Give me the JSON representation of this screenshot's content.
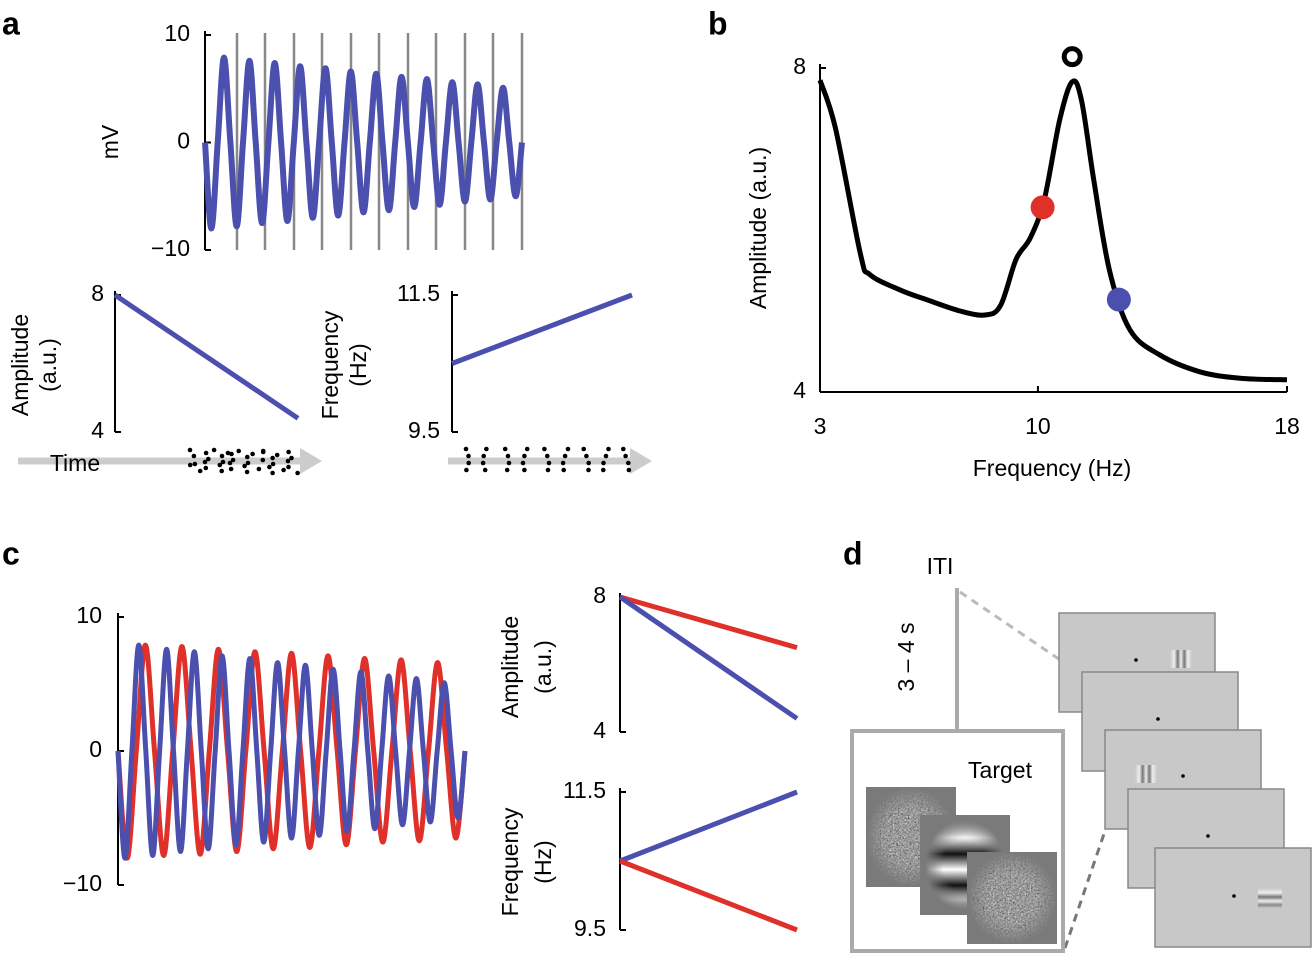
{
  "panel_labels": [
    "a",
    "b",
    "c",
    "d"
  ],
  "chart_data": [
    {
      "type": "line",
      "ylabel": "mV",
      "ylim": [
        -10,
        10
      ],
      "yticks": [
        {
          "value": -10,
          "label": "−10"
        },
        0,
        10
      ],
      "series": [
        {
          "color": "#4b4fae",
          "values": [
            0,
            -8,
            0,
            7.9,
            0,
            -7.8,
            0,
            7.6,
            0,
            -7.5,
            0,
            7.4,
            0,
            -7.3,
            0,
            7.1,
            0,
            -7,
            0,
            6.9,
            0,
            -6.8,
            0,
            6.6,
            0,
            -6.5,
            0,
            6.4,
            0,
            -6.3,
            0,
            6.1,
            0,
            -6,
            0,
            5.9,
            0,
            -5.8,
            0,
            5.6,
            0,
            -5.5,
            0,
            5.4,
            0,
            -5.3,
            0,
            5.1,
            0,
            -5,
            0
          ]
        }
      ]
    },
    {
      "type": "line",
      "ylabel": [
        "Amplitude",
        "(a.u.)"
      ],
      "xlabel": "Time",
      "ylim": [
        4,
        8
      ],
      "yticks": [
        4,
        8
      ],
      "series": [
        {
          "color": "#4b4fae",
          "values": [
            8,
            4.4
          ]
        }
      ]
    },
    {
      "type": "line",
      "ylabel": [
        "Frequency",
        "(Hz)"
      ],
      "ylim": [
        9.5,
        11.5
      ],
      "yticks": [
        9.5,
        11.5
      ],
      "series": [
        {
          "color": "#4b4fae",
          "values": [
            10.5,
            11.5
          ]
        }
      ]
    },
    {
      "type": "line",
      "xlabel": "Frequency (Hz)",
      "ylabel": "Amplitude (a.u.)",
      "xlim": [
        3,
        18
      ],
      "xticks": [
        3,
        10,
        18
      ],
      "ylim": [
        4,
        8
      ],
      "yticks": [
        4,
        8
      ],
      "series": [
        {
          "color": "#000000",
          "x": [
            3,
            3.5,
            4.3,
            4.6,
            5.57,
            6.5,
            7.5,
            8.3,
            8.8,
            9.3,
            9.75,
            10.2,
            10.7,
            11.1,
            11.4,
            11.8,
            12.3,
            12.95,
            13.9,
            15.2,
            16.5,
            18
          ],
          "values": [
            7.85,
            7.25,
            5.7,
            5.45,
            5.26,
            5.13,
            5.0,
            4.95,
            5.07,
            5.64,
            5.9,
            6.37,
            7.36,
            7.83,
            7.6,
            6.6,
            5.5,
            4.77,
            4.46,
            4.25,
            4.17,
            4.15
          ]
        }
      ],
      "points": [
        {
          "x": 11.1,
          "y": 8.14,
          "color": "#000000",
          "filled": false
        },
        {
          "x": 10.15,
          "y": 6.28,
          "color": "#e0302a",
          "filled": true
        },
        {
          "x": 12.6,
          "y": 5.14,
          "color": "#4b4fae",
          "filled": true
        }
      ]
    },
    {
      "type": "line",
      "ylim": [
        -10,
        10
      ],
      "yticks": [
        {
          "value": -10,
          "label": "−10"
        },
        0,
        10
      ],
      "series": [
        {
          "color": "#e0302a",
          "values": [
            0,
            -8,
            0,
            7.9,
            0,
            -7.8,
            0,
            7.8,
            0,
            -7.7,
            0,
            7.6,
            0,
            -7.5,
            0,
            7.4,
            0,
            -7.3,
            0,
            7.3,
            0,
            -7.2,
            0,
            7.1,
            0,
            -7,
            0,
            6.9,
            0,
            -6.8,
            0,
            6.8,
            0,
            -6.7,
            0,
            6.6,
            0,
            -6.5,
            0
          ]
        },
        {
          "color": "#4b4fae",
          "values": [
            0,
            -8,
            0,
            7.9,
            0,
            -7.8,
            0,
            7.6,
            0,
            -7.5,
            0,
            7.4,
            0,
            -7.3,
            0,
            7.1,
            0,
            -7,
            0,
            6.9,
            0,
            -6.8,
            0,
            6.6,
            0,
            -6.5,
            0,
            6.4,
            0,
            -6.3,
            0,
            6.1,
            0,
            -6,
            0,
            5.9,
            0,
            -5.8,
            0,
            5.6,
            0,
            -5.5,
            0,
            5.4,
            0,
            -5.3,
            0,
            5.1,
            0,
            -5,
            0
          ]
        }
      ]
    },
    {
      "type": "line",
      "ylabel": [
        "Amplitude",
        "(a.u.)"
      ],
      "ylim": [
        4,
        8
      ],
      "yticks": [
        4,
        8
      ],
      "series": [
        {
          "color": "#e0302a",
          "values": [
            8,
            6.5
          ]
        },
        {
          "color": "#4b4fae",
          "values": [
            8,
            4.4
          ]
        }
      ]
    },
    {
      "type": "line",
      "ylabel": [
        "Frequency",
        "(Hz)"
      ],
      "ylim": [
        9.5,
        11.5
      ],
      "yticks": [
        9.5,
        11.5
      ],
      "series": [
        {
          "color": "#4b4fae",
          "values": [
            10.5,
            11.5
          ]
        },
        {
          "color": "#e0302a",
          "values": [
            10.5,
            9.5
          ]
        }
      ]
    }
  ],
  "diagram": {
    "iti": "ITI",
    "duration": "3 – 4 s",
    "target": "Target"
  }
}
